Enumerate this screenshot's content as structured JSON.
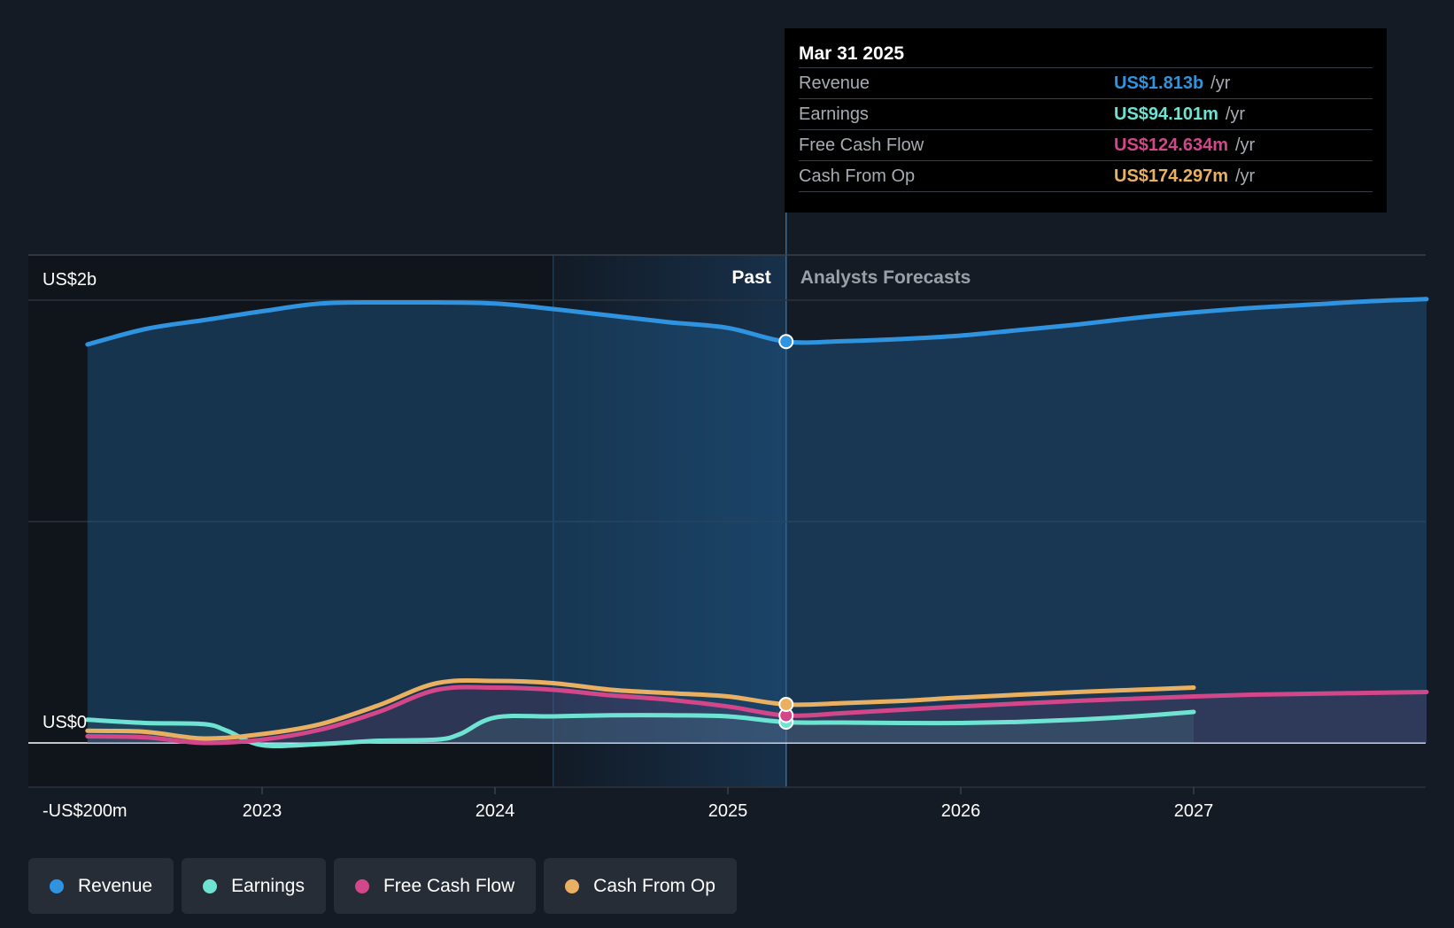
{
  "colors": {
    "background": "#151b24",
    "revenue": "#2f93e0",
    "earnings": "#6fe3d2",
    "free_cash_flow": "#d2468a",
    "cash_from_op": "#e9b062",
    "past_highlight": "#1a3a5a"
  },
  "tooltip": {
    "date": "Mar 31 2025",
    "rows": [
      {
        "label": "Revenue",
        "value": "US$1.813b",
        "unit": "/yr",
        "color": "#2f93e0"
      },
      {
        "label": "Earnings",
        "value": "US$94.101m",
        "unit": "/yr",
        "color": "#6fe3d2"
      },
      {
        "label": "Free Cash Flow",
        "value": "US$124.634m",
        "unit": "/yr",
        "color": "#d2468a"
      },
      {
        "label": "Cash From Op",
        "value": "US$174.297m",
        "unit": "/yr",
        "color": "#e9b062"
      }
    ]
  },
  "regions": {
    "past_label": "Past",
    "forecast_label": "Analysts Forecasts"
  },
  "legend": [
    {
      "label": "Revenue",
      "color": "#2f93e0",
      "icon": "dot-icon"
    },
    {
      "label": "Earnings",
      "color": "#6fe3d2",
      "icon": "dot-icon"
    },
    {
      "label": "Free Cash Flow",
      "color": "#d2468a",
      "icon": "dot-icon"
    },
    {
      "label": "Cash From Op",
      "color": "#e9b062",
      "icon": "dot-icon"
    }
  ],
  "chart_data": {
    "type": "line",
    "title": "",
    "xlabel": "",
    "ylabel": "",
    "y_tick_labels": [
      {
        "value": 2000,
        "label": "US$2b"
      },
      {
        "value": 0,
        "label": "US$0"
      },
      {
        "value": -200,
        "label": "-US$200m"
      }
    ],
    "x_ticks": [
      2023,
      2024,
      2025,
      2026,
      2027
    ],
    "xlim": [
      2022.0,
      2028.0
    ],
    "ylim": [
      -200,
      2000
    ],
    "grid": true,
    "past_forecast_boundary": 2025.25,
    "highlight_start": 2024.25,
    "series": [
      {
        "name": "Revenue",
        "key": "revenue",
        "area": true,
        "x": [
          2022.25,
          2022.5,
          2022.75,
          2023.0,
          2023.25,
          2023.5,
          2023.75,
          2024.0,
          2024.25,
          2024.5,
          2024.75,
          2025.0,
          2025.25,
          2025.5,
          2025.75,
          2026.0,
          2026.25,
          2026.5,
          2026.75,
          2027.0,
          2027.25,
          2027.5,
          2027.75,
          2028.0
        ],
        "values": [
          1800,
          1870,
          1910,
          1950,
          1985,
          1990,
          1990,
          1985,
          1960,
          1930,
          1900,
          1875,
          1813,
          1815,
          1825,
          1840,
          1865,
          1890,
          1920,
          1945,
          1965,
          1980,
          1995,
          2005
        ]
      },
      {
        "name": "Earnings",
        "key": "earnings",
        "area": true,
        "x": [
          2022.25,
          2022.5,
          2022.75,
          2022.85,
          2023.0,
          2023.25,
          2023.5,
          2023.75,
          2023.85,
          2024.0,
          2024.25,
          2024.5,
          2024.75,
          2025.0,
          2025.25,
          2025.5,
          2025.75,
          2026.0,
          2026.25,
          2026.5,
          2026.75,
          2027.0
        ],
        "values": [
          105,
          90,
          85,
          55,
          -10,
          -5,
          10,
          15,
          40,
          115,
          120,
          125,
          125,
          120,
          94,
          92,
          90,
          90,
          95,
          105,
          120,
          140
        ]
      },
      {
        "name": "Free Cash Flow",
        "key": "free_cash_flow",
        "area": true,
        "x": [
          2022.25,
          2022.5,
          2022.75,
          2023.0,
          2023.25,
          2023.5,
          2023.75,
          2024.0,
          2024.25,
          2024.5,
          2024.75,
          2025.0,
          2025.25,
          2025.5,
          2025.75,
          2026.0,
          2026.25,
          2026.5,
          2026.75,
          2027.0,
          2027.25,
          2027.5,
          2027.75,
          2028.0
        ],
        "values": [
          30,
          25,
          0,
          15,
          60,
          140,
          240,
          250,
          240,
          215,
          195,
          165,
          124,
          135,
          150,
          165,
          178,
          190,
          200,
          210,
          218,
          222,
          226,
          230
        ]
      },
      {
        "name": "Cash From Op",
        "key": "cash_from_op",
        "area": false,
        "x": [
          2022.25,
          2022.5,
          2022.75,
          2023.0,
          2023.25,
          2023.5,
          2023.75,
          2024.0,
          2024.25,
          2024.5,
          2024.75,
          2025.0,
          2025.25,
          2025.5,
          2025.75,
          2026.0,
          2026.25,
          2026.5,
          2026.75,
          2027.0
        ],
        "values": [
          55,
          50,
          20,
          40,
          85,
          170,
          270,
          280,
          270,
          240,
          225,
          210,
          174,
          180,
          190,
          205,
          218,
          230,
          240,
          250
        ]
      }
    ]
  }
}
